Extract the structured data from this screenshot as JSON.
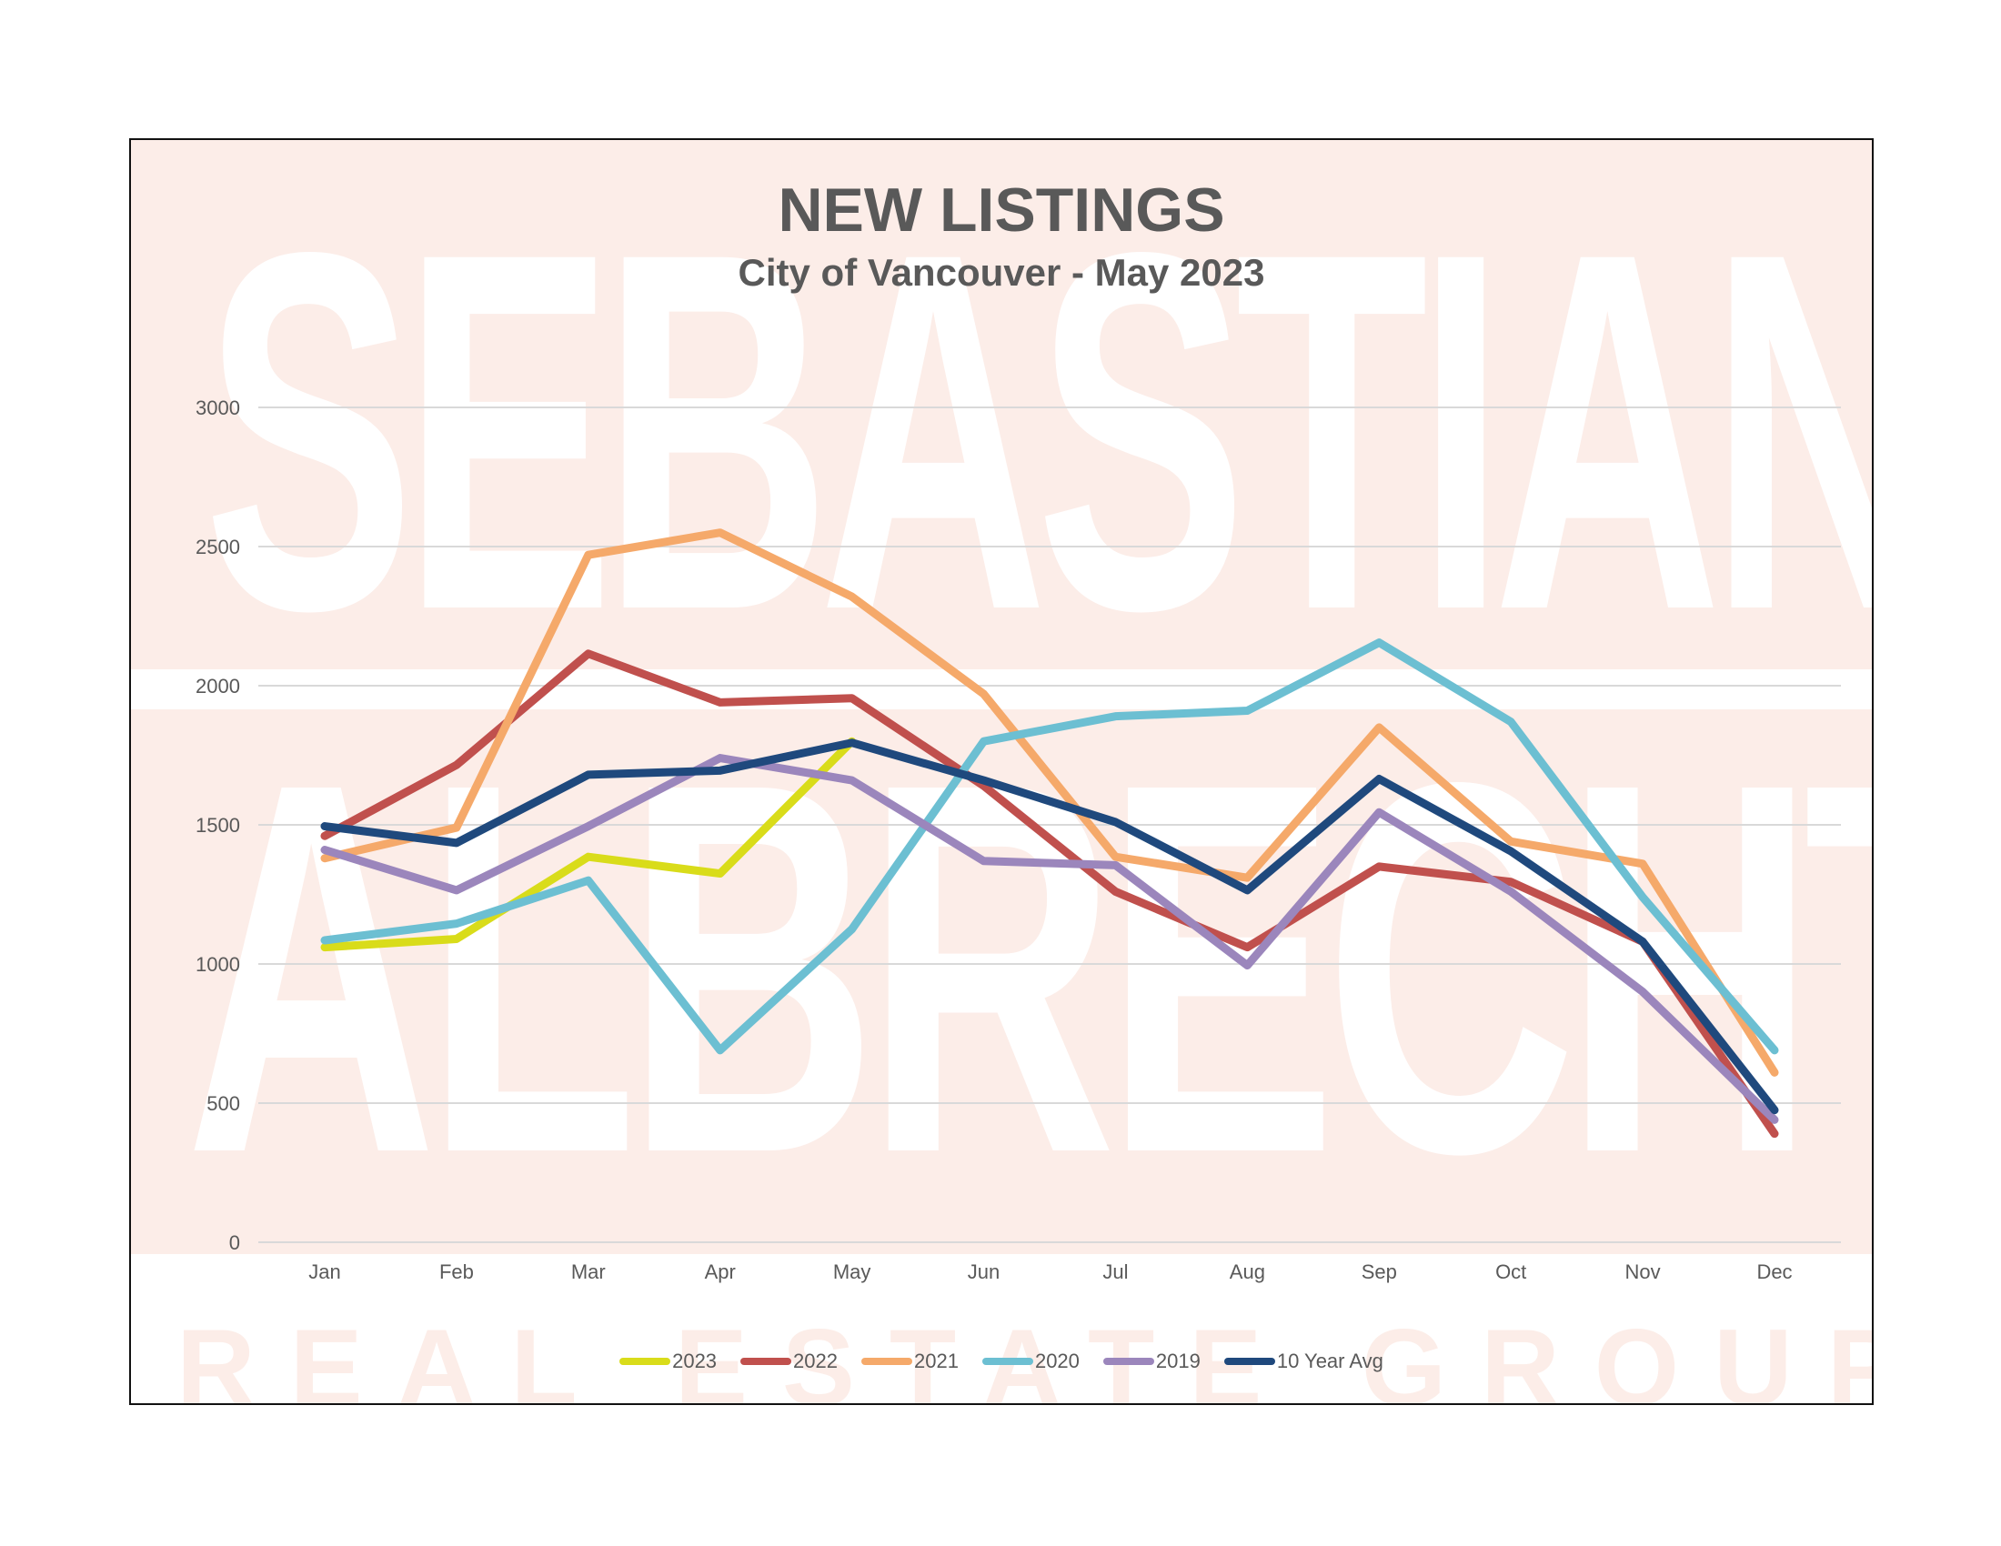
{
  "title": "NEW LISTINGS",
  "subtitle": "City of Vancouver - May 2023",
  "watermark": {
    "line1": "SEBASTIAN",
    "line2": "ALBRECHT",
    "line3": "REAL ESTATE GROUP"
  },
  "chart_data": {
    "type": "line",
    "title": "NEW LISTINGS",
    "subtitle": "City of Vancouver - May 2023",
    "xlabel": "",
    "ylabel": "",
    "ylim": [
      0,
      3000
    ],
    "yticks": [
      0,
      500,
      1000,
      1500,
      2000,
      2500,
      3000
    ],
    "grid": true,
    "legend_position": "bottom",
    "categories": [
      "Jan",
      "Feb",
      "Mar",
      "Apr",
      "May",
      "Jun",
      "Jul",
      "Aug",
      "Sep",
      "Oct",
      "Nov",
      "Dec"
    ],
    "series": [
      {
        "name": "2023",
        "color": "#d9dc1a",
        "values": [
          1060,
          1090,
          1385,
          1325,
          1800,
          null,
          null,
          null,
          null,
          null,
          null,
          null
        ]
      },
      {
        "name": "2022",
        "color": "#c0504d",
        "values": [
          1460,
          1715,
          2115,
          1940,
          1955,
          1640,
          1260,
          1060,
          1350,
          1295,
          1080,
          390
        ]
      },
      {
        "name": "2021",
        "color": "#f5a96a",
        "values": [
          1380,
          1490,
          2470,
          2550,
          2320,
          1970,
          1385,
          1310,
          1850,
          1440,
          1360,
          610
        ]
      },
      {
        "name": "2020",
        "color": "#6cbfd2",
        "values": [
          1085,
          1145,
          1300,
          690,
          1125,
          1800,
          1890,
          1910,
          2155,
          1870,
          1240,
          690
        ]
      },
      {
        "name": "2019",
        "color": "#9b86bc",
        "values": [
          1410,
          1265,
          1495,
          1740,
          1660,
          1370,
          1355,
          995,
          1545,
          1260,
          900,
          440
        ]
      },
      {
        "name": "10 Year Avg",
        "color": "#1f497d",
        "values": [
          1495,
          1435,
          1680,
          1695,
          1795,
          1660,
          1510,
          1265,
          1665,
          1405,
          1080,
          475
        ]
      }
    ]
  }
}
